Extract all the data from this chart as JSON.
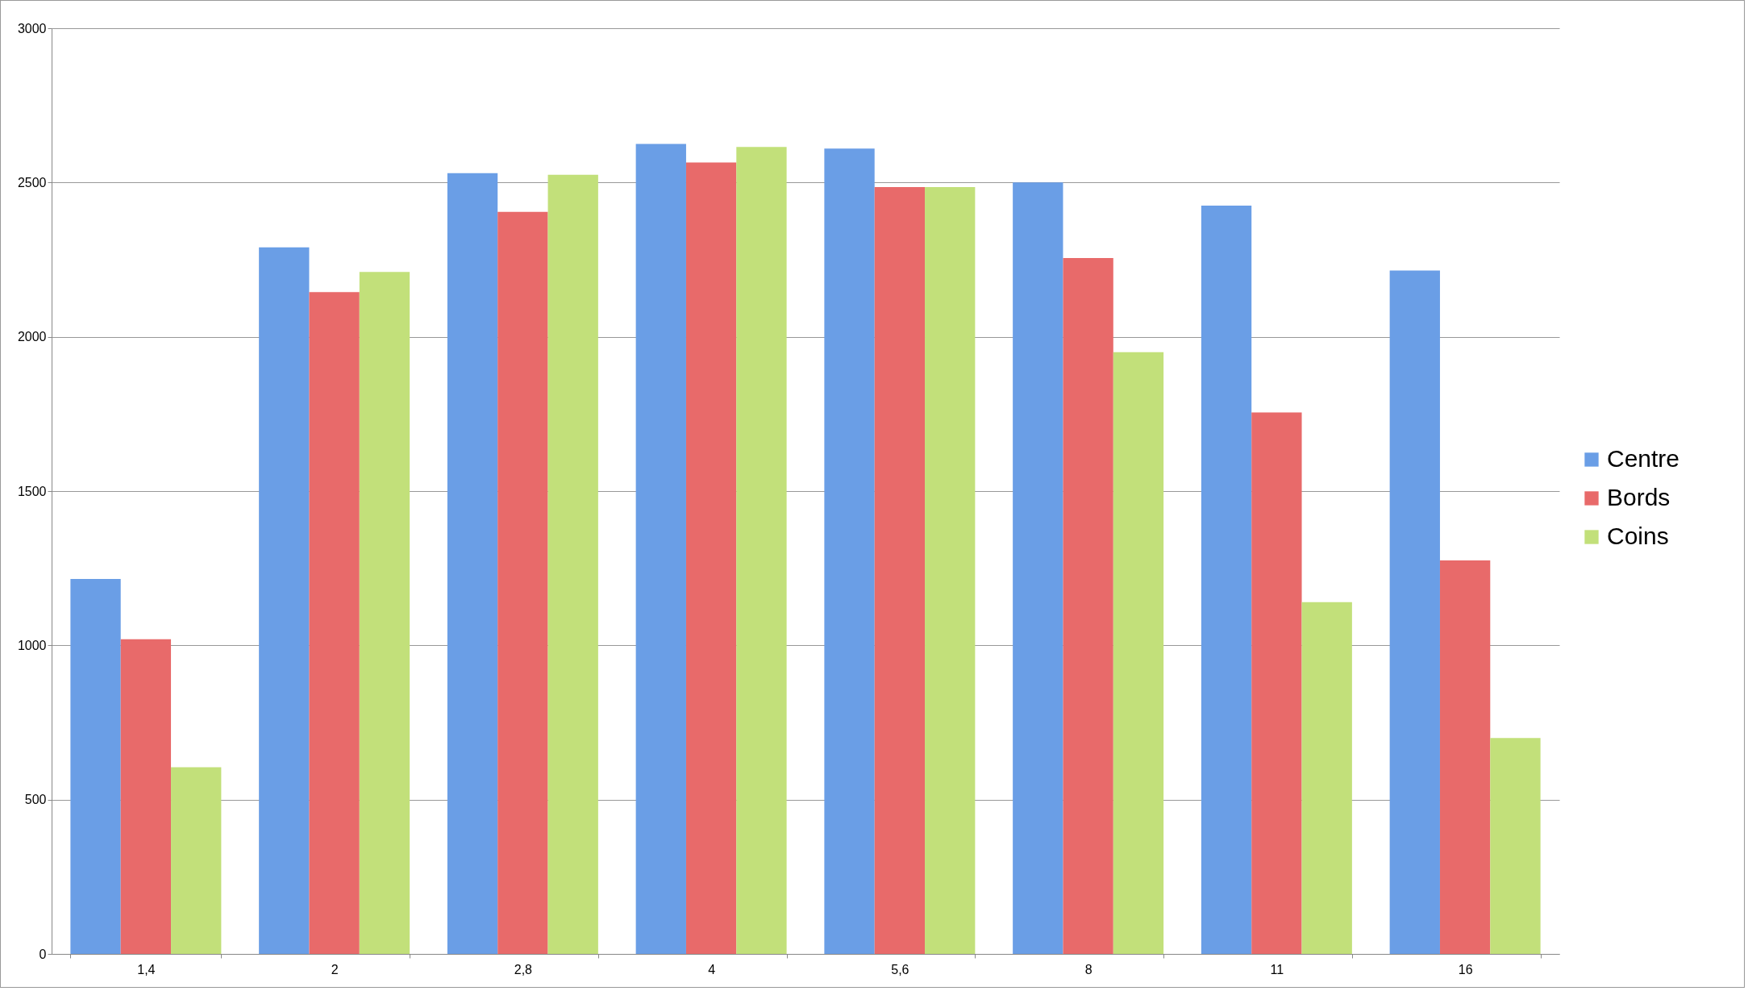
{
  "chart_data": {
    "type": "bar",
    "categories": [
      "1,4",
      "2",
      "2,8",
      "4",
      "5,6",
      "8",
      "11",
      "16"
    ],
    "series": [
      {
        "name": "Centre",
        "color": "#6a9ee6",
        "values": [
          1215,
          2290,
          2530,
          2625,
          2610,
          2500,
          2425,
          2215
        ]
      },
      {
        "name": "Bords",
        "color": "#e86a6a",
        "values": [
          1020,
          2145,
          2405,
          2565,
          2485,
          2255,
          1755,
          1275
        ]
      },
      {
        "name": "Coins",
        "color": "#c2e07a",
        "values": [
          605,
          2210,
          2525,
          2615,
          2485,
          1950,
          1140,
          700
        ]
      }
    ],
    "ylim": [
      0,
      3000
    ],
    "yticks": [
      0,
      500,
      1000,
      1500,
      2000,
      2500,
      3000
    ],
    "grid": "y",
    "legend": "right"
  }
}
